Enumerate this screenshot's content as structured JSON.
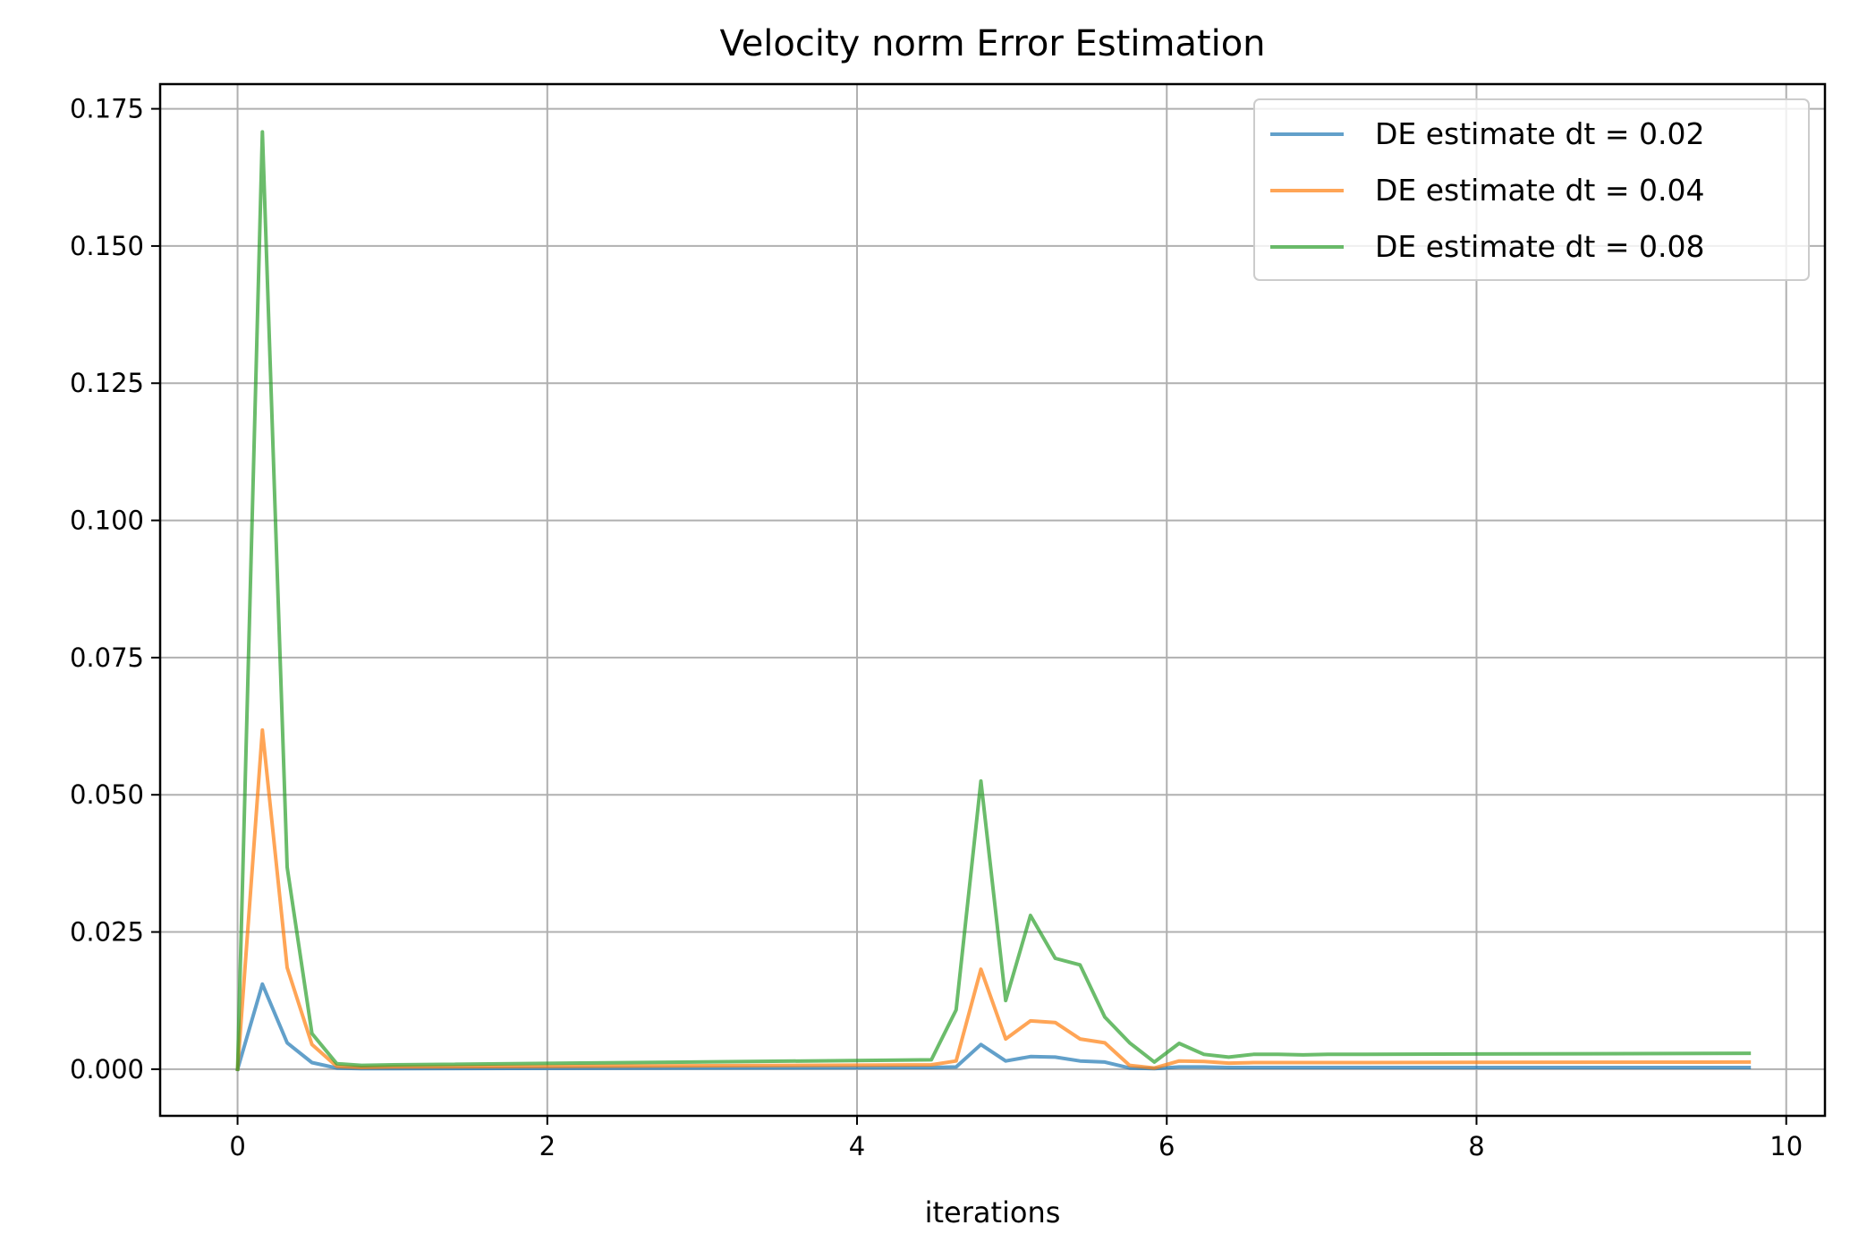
{
  "chart_data": {
    "type": "line",
    "title": "Velocity norm Error Estimation",
    "xlabel": "iterations",
    "ylabel": "",
    "xlim": [
      -0.5,
      10.25
    ],
    "ylim": [
      -0.0085,
      0.1795
    ],
    "xticks": [
      0,
      2,
      4,
      6,
      8,
      10
    ],
    "xtick_labels": [
      "0",
      "2",
      "4",
      "6",
      "8",
      "10"
    ],
    "yticks": [
      0.0,
      0.025,
      0.05,
      0.075,
      0.1,
      0.125,
      0.15,
      0.175
    ],
    "ytick_labels": [
      "0.000",
      "0.025",
      "0.050",
      "0.075",
      "0.100",
      "0.125",
      "0.150",
      "0.175"
    ],
    "grid": true,
    "legend_position": "top-right",
    "colors": {
      "series_0": "#1f77b4",
      "series_1": "#ff7f0e",
      "series_2": "#2ca02c"
    },
    "series": [
      {
        "name": "DE estimate dt = 0.02",
        "x": [
          0.0,
          0.16,
          0.32,
          0.48,
          0.64,
          0.8,
          1.0,
          4.48,
          4.64,
          4.8,
          4.96,
          5.12,
          5.28,
          5.44,
          5.6,
          5.76,
          5.92,
          6.08,
          6.24,
          6.4,
          6.56,
          6.72,
          6.88,
          7.04,
          7.2,
          9.76
        ],
        "y": [
          0.0,
          0.0155,
          0.0048,
          0.0012,
          0.0002,
          0.0001,
          0.0001,
          0.0003,
          0.0004,
          0.0045,
          0.0015,
          0.0023,
          0.0022,
          0.0015,
          0.0013,
          0.0002,
          0.0001,
          0.0004,
          0.0004,
          0.0003,
          0.0003,
          0.0003,
          0.0003,
          0.0003,
          0.0003,
          0.0003
        ]
      },
      {
        "name": "DE estimate dt = 0.04",
        "x": [
          0.0,
          0.16,
          0.32,
          0.48,
          0.64,
          0.8,
          1.0,
          4.48,
          4.64,
          4.8,
          4.96,
          5.12,
          5.28,
          5.44,
          5.6,
          5.76,
          5.92,
          6.08,
          6.24,
          6.4,
          6.56,
          6.72,
          6.88,
          7.04,
          7.2,
          9.76
        ],
        "y": [
          0.0,
          0.0618,
          0.0185,
          0.0045,
          0.0005,
          0.0003,
          0.0004,
          0.0008,
          0.0015,
          0.0182,
          0.0055,
          0.0088,
          0.0085,
          0.0055,
          0.0048,
          0.0007,
          0.0002,
          0.0015,
          0.0014,
          0.0011,
          0.0012,
          0.0012,
          0.0012,
          0.0012,
          0.0012,
          0.0013
        ]
      },
      {
        "name": "DE estimate dt = 0.08",
        "x": [
          0.0,
          0.16,
          0.32,
          0.48,
          0.64,
          0.8,
          1.0,
          4.48,
          4.64,
          4.8,
          4.96,
          5.12,
          5.28,
          5.44,
          5.6,
          5.76,
          5.92,
          6.08,
          6.24,
          6.4,
          6.56,
          6.72,
          6.88,
          7.04,
          7.2,
          9.76
        ],
        "y": [
          0.0,
          0.1708,
          0.0368,
          0.0065,
          0.001,
          0.0007,
          0.0008,
          0.0017,
          0.0108,
          0.0525,
          0.0125,
          0.028,
          0.0202,
          0.019,
          0.0095,
          0.0048,
          0.0013,
          0.0047,
          0.0027,
          0.0022,
          0.0027,
          0.0027,
          0.0026,
          0.0027,
          0.0027,
          0.0029
        ]
      }
    ]
  }
}
